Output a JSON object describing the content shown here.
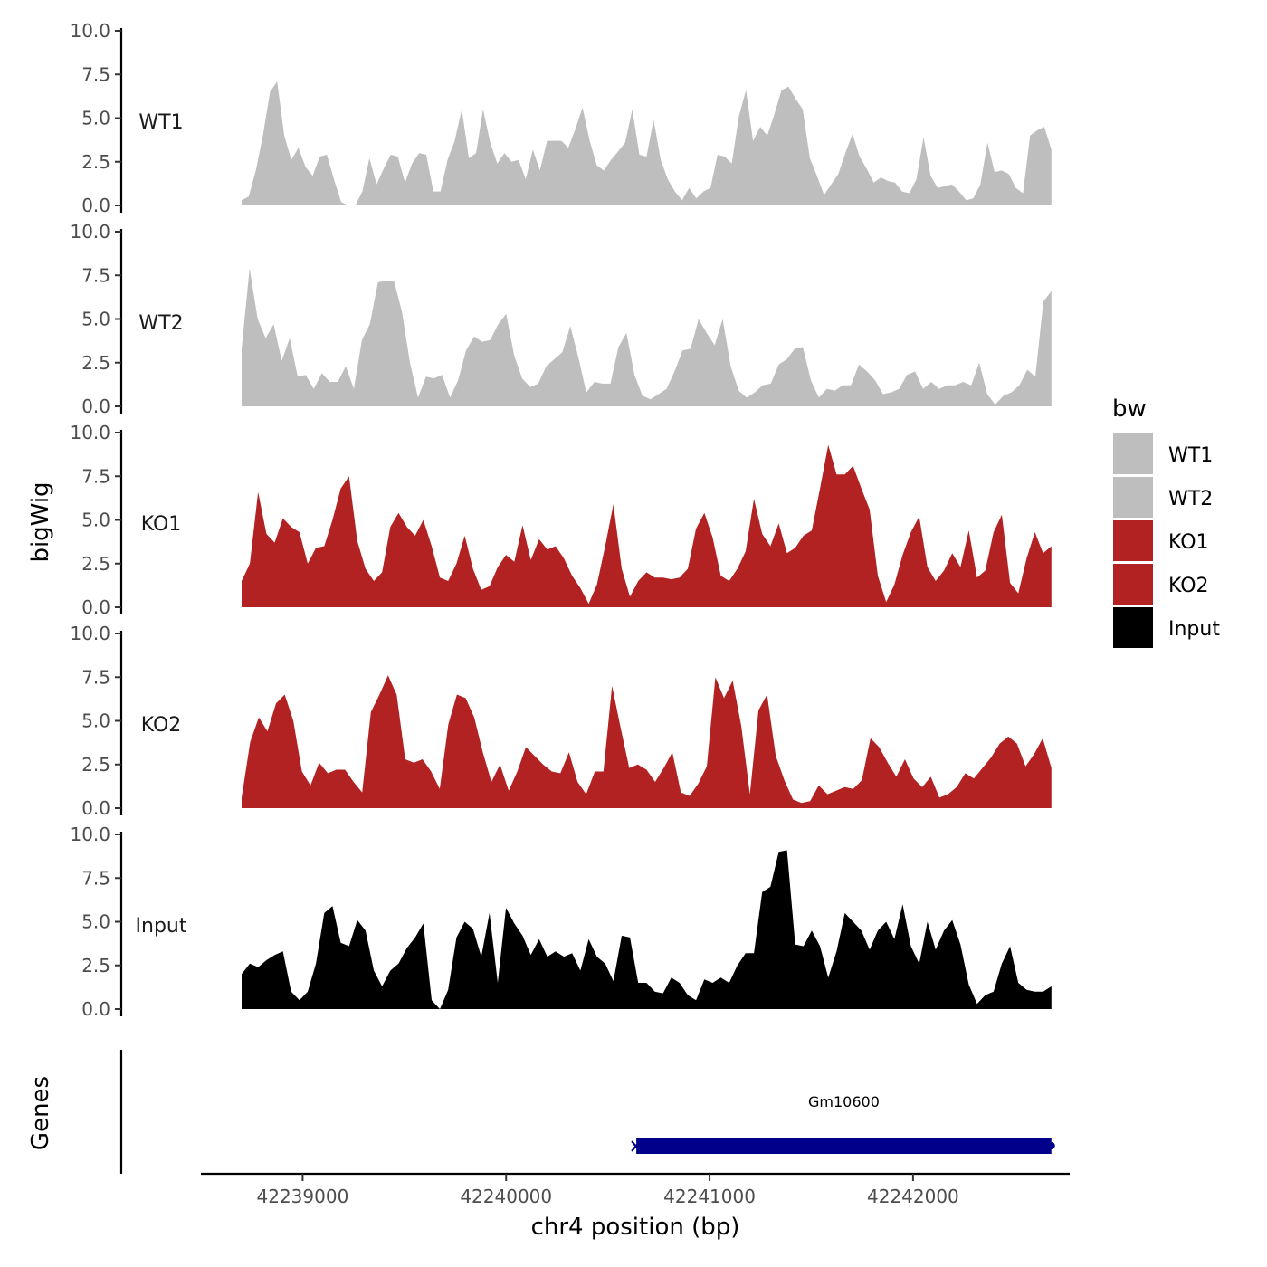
{
  "chart_data": {
    "type": "area",
    "subtype": "genome-track",
    "xlabel": "chr4 position (bp)",
    "ylabel": "bigWig",
    "gene_panel_label": "Genes",
    "x_range": [
      42238500,
      42242770
    ],
    "x_data_range": [
      42238700,
      42242680
    ],
    "x_ticks": [
      42239000,
      42240000,
      42241000,
      42242000
    ],
    "x_tick_labels": [
      "42239000",
      "42240000",
      "42241000",
      "42242000"
    ],
    "y_range": [
      0,
      10
    ],
    "y_ticks": [
      0,
      2.5,
      5,
      7.5,
      10
    ],
    "y_tick_labels": [
      "0.0",
      "2.5",
      "5.0",
      "7.5",
      "10.0"
    ],
    "legend": {
      "title": "bw",
      "entries": [
        {
          "label": "WT1",
          "color": "#bebebe"
        },
        {
          "label": "WT2",
          "color": "#bebebe"
        },
        {
          "label": "KO1",
          "color": "#b22222"
        },
        {
          "label": "KO2",
          "color": "#b22222"
        },
        {
          "label": "Input",
          "color": "#000000"
        }
      ]
    },
    "tracks": [
      {
        "name": "WT1",
        "color": "#bebebe",
        "values": [
          0.3,
          0.5,
          2.0,
          4.0,
          6.5,
          7.1,
          4.0,
          2.6,
          3.3,
          2.2,
          1.7,
          2.8,
          2.9,
          1.5,
          0.2,
          0,
          0,
          0.8,
          2.7,
          1.2,
          2.1,
          2.9,
          2.8,
          1.3,
          2.4,
          3.0,
          2.9,
          0.8,
          0.8,
          2.6,
          3.7,
          5.5,
          2.7,
          3.0,
          5.5,
          3.6,
          2.4,
          3.0,
          2.5,
          2.6,
          1.5,
          3.2,
          2.0,
          3.7,
          3.7,
          3.7,
          3.3,
          4.4,
          5.6,
          3.7,
          2.3,
          2.0,
          2.6,
          3.1,
          3.6,
          5.5,
          2.9,
          2.8,
          4.9,
          2.6,
          1.5,
          0.8,
          0.3,
          1.0,
          0.4,
          0.8,
          1.0,
          2.9,
          2.8,
          2.4,
          5.1,
          6.6,
          3.7,
          4.5,
          4.0,
          5.2,
          6.6,
          6.8,
          6.1,
          5.5,
          2.7,
          1.7,
          0.6,
          1.2,
          1.8,
          3.0,
          4.1,
          2.8,
          2.1,
          1.3,
          1.6,
          1.4,
          1.3,
          0.8,
          0.7,
          1.5,
          3.9,
          1.7,
          1.0,
          1.1,
          1.2,
          0.8,
          0.3,
          0.4,
          1.2,
          3.6,
          1.9,
          2.0,
          1.8,
          1.0,
          0.7,
          4.0,
          4.3,
          4.5,
          3.2
        ]
      },
      {
        "name": "WT2",
        "color": "#bebebe",
        "values": [
          3.3,
          7.9,
          5.0,
          3.9,
          4.7,
          2.6,
          3.9,
          1.7,
          1.8,
          1.0,
          1.9,
          1.4,
          1.4,
          2.3,
          1.0,
          3.8,
          4.7,
          7.1,
          7.2,
          7.2,
          5.4,
          2.5,
          0.5,
          1.7,
          1.6,
          1.8,
          0.5,
          1.5,
          3.2,
          4.0,
          3.7,
          3.8,
          4.7,
          5.3,
          2.9,
          1.6,
          1.1,
          1.3,
          2.3,
          2.7,
          3.1,
          4.6,
          2.8,
          0.8,
          1.4,
          1.3,
          1.3,
          3.4,
          4.2,
          1.8,
          0.6,
          0.4,
          0.7,
          1.0,
          2.0,
          3.2,
          3.3,
          5.0,
          4.2,
          3.5,
          5.0,
          2.3,
          0.9,
          0.5,
          0.8,
          1.2,
          1.3,
          2.4,
          2.7,
          3.3,
          3.4,
          1.5,
          0.5,
          1.0,
          0.9,
          1.2,
          1.2,
          2.4,
          2.0,
          1.5,
          0.7,
          0.8,
          1.0,
          1.8,
          2.0,
          1.0,
          1.4,
          1.0,
          1.2,
          1.2,
          1.4,
          1.2,
          2.5,
          0.7,
          0.1,
          0.6,
          0.8,
          1.2,
          2.1,
          1.7,
          6.0,
          6.6
        ]
      },
      {
        "name": "KO1",
        "color": "#b22222",
        "values": [
          1.5,
          2.5,
          6.6,
          4.2,
          3.7,
          5.1,
          4.6,
          4.3,
          2.5,
          3.4,
          3.5,
          5.0,
          6.8,
          7.5,
          3.8,
          2.2,
          1.5,
          2.0,
          4.6,
          5.4,
          4.6,
          4.1,
          5.0,
          3.5,
          1.7,
          1.5,
          2.5,
          4.1,
          2.2,
          1.0,
          1.2,
          2.3,
          3.0,
          2.6,
          4.7,
          2.7,
          3.9,
          3.3,
          3.5,
          2.8,
          1.8,
          1.1,
          0.2,
          1.3,
          3.5,
          5.9,
          2.2,
          0.6,
          1.5,
          2.0,
          1.7,
          1.7,
          1.6,
          1.7,
          2.2,
          4.5,
          5.4,
          4.0,
          1.8,
          1.5,
          2.2,
          3.2,
          6.2,
          4.2,
          3.5,
          4.8,
          3.1,
          3.4,
          4.1,
          4.4,
          6.8,
          9.3,
          7.6,
          7.6,
          8.1,
          6.8,
          5.6,
          1.8,
          0.3,
          1.3,
          3.0,
          4.3,
          5.2,
          2.3,
          1.5,
          2.1,
          3.1,
          2.3,
          4.4,
          1.7,
          2.1,
          4.3,
          5.3,
          1.4,
          0.8,
          2.8,
          4.3,
          3.1,
          3.5
        ]
      },
      {
        "name": "KO2",
        "color": "#b22222",
        "values": [
          0.6,
          3.8,
          5.2,
          4.4,
          6.0,
          6.5,
          5.0,
          2.1,
          1.3,
          2.6,
          2.0,
          2.2,
          2.2,
          1.5,
          0.9,
          5.5,
          6.5,
          7.6,
          6.5,
          2.8,
          2.6,
          2.8,
          2.1,
          1.1,
          4.8,
          6.5,
          6.3,
          5.2,
          3.2,
          1.5,
          2.5,
          1.0,
          2.1,
          3.5,
          3.0,
          2.5,
          2.1,
          2.0,
          3.2,
          1.5,
          0.8,
          2.1,
          2.1,
          7.0,
          4.6,
          2.3,
          2.5,
          2.2,
          1.5,
          2.3,
          3.2,
          0.9,
          0.7,
          1.4,
          2.4,
          7.5,
          6.3,
          7.3,
          4.7,
          0.8,
          5.6,
          6.5,
          3.0,
          1.6,
          0.5,
          0.3,
          0.4,
          1.3,
          0.8,
          1.0,
          1.2,
          1.1,
          1.6,
          4.0,
          3.5,
          2.6,
          1.8,
          2.8,
          1.7,
          1.2,
          1.8,
          0.6,
          0.8,
          1.2,
          2.0,
          1.7,
          2.3,
          2.9,
          3.7,
          4.1,
          3.7,
          2.4,
          3.1,
          4.0,
          2.3
        ]
      },
      {
        "name": "Input",
        "color": "#000000",
        "values": [
          2.0,
          2.6,
          2.4,
          2.8,
          3.1,
          3.3,
          1.0,
          0.5,
          1.0,
          2.6,
          5.5,
          5.9,
          3.8,
          3.6,
          5.1,
          4.5,
          2.2,
          1.3,
          2.2,
          2.6,
          3.5,
          4.1,
          4.9,
          0.5,
          0,
          1.1,
          4.1,
          5.0,
          4.6,
          3.0,
          5.5,
          1.5,
          5.8,
          4.9,
          4.2,
          3.1,
          4.0,
          3.0,
          3.3,
          3.0,
          3.2,
          2.2,
          4.0,
          3.0,
          2.6,
          1.6,
          4.2,
          4.1,
          1.5,
          1.5,
          1.0,
          0.9,
          1.8,
          1.5,
          0.8,
          0.5,
          1.7,
          1.5,
          1.8,
          1.5,
          2.5,
          3.2,
          3.2,
          6.7,
          7.0,
          9.0,
          9.1,
          3.7,
          3.6,
          4.5,
          3.6,
          1.8,
          3.3,
          5.5,
          5.0,
          4.5,
          3.4,
          4.5,
          5.0,
          4.0,
          6.0,
          3.6,
          2.6,
          5.0,
          3.4,
          4.5,
          5.1,
          3.7,
          1.4,
          0.3,
          0.8,
          1.0,
          2.6,
          3.6,
          1.5,
          1.1,
          1.0,
          1.0,
          1.3
        ]
      }
    ],
    "genes": [
      {
        "name": "Gm10600",
        "start": 42240640,
        "end": 42242680,
        "strand": "-",
        "color": "#00008b"
      }
    ]
  }
}
